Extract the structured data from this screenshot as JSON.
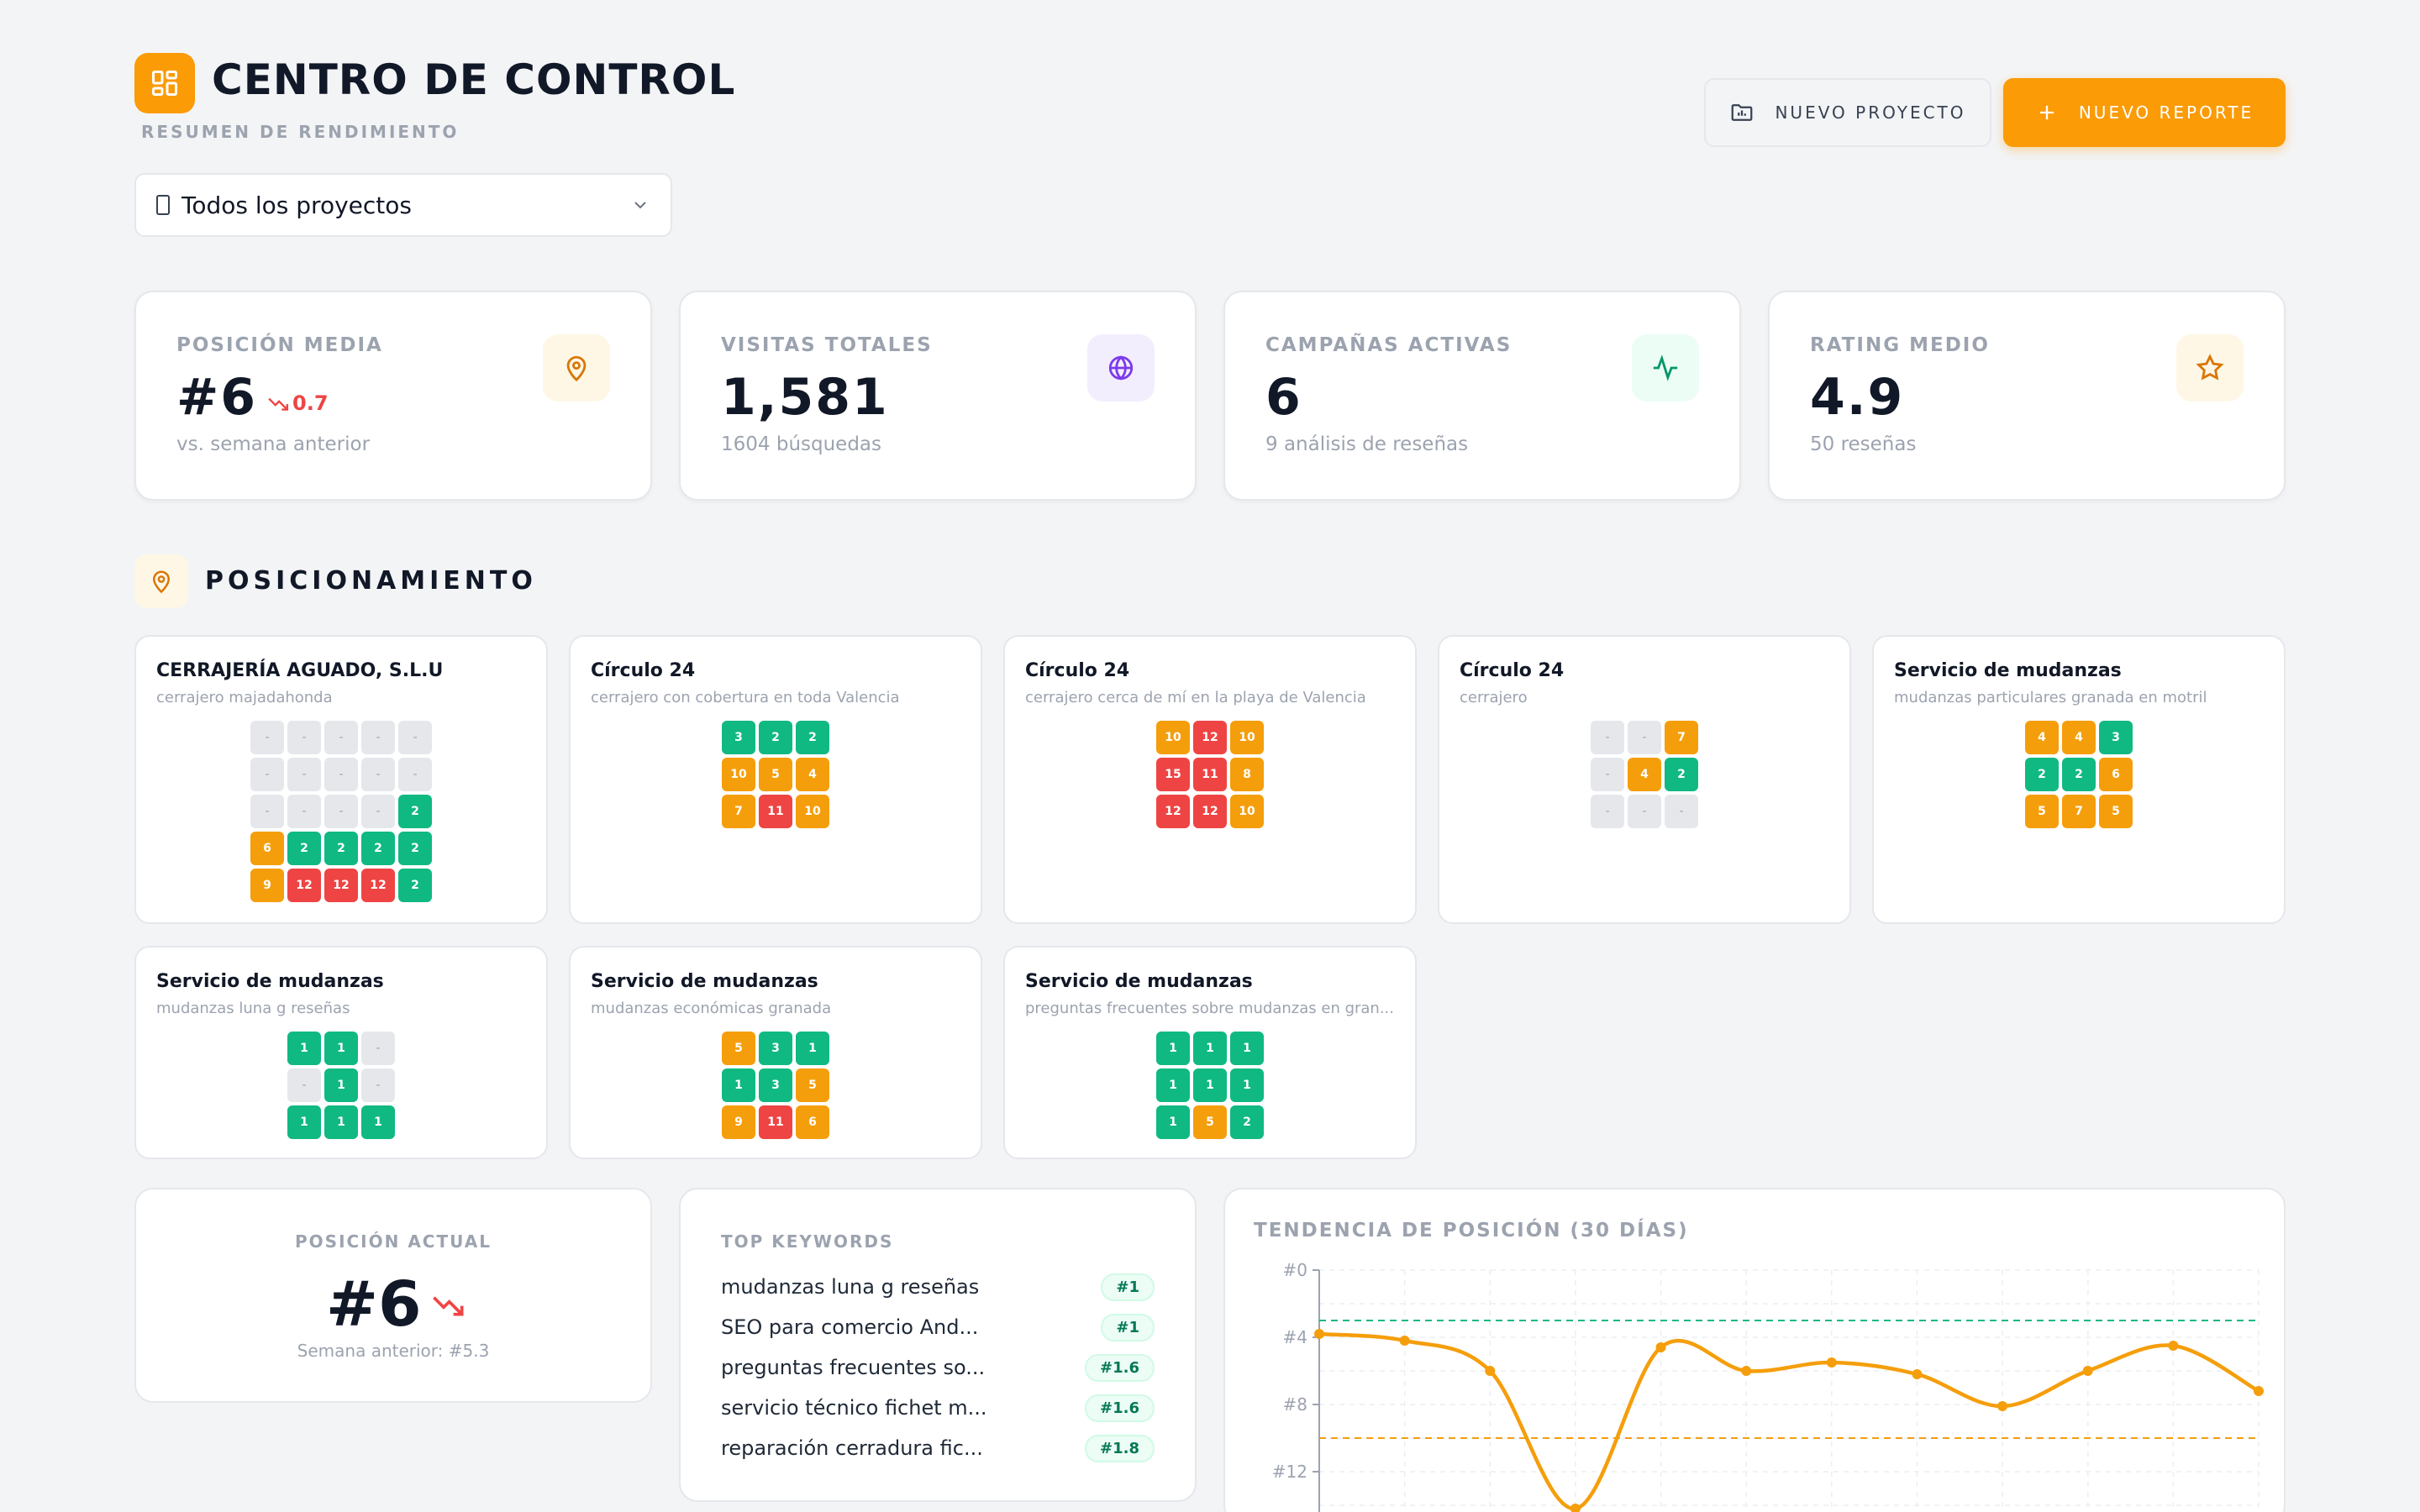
{
  "header": {
    "title": "CENTRO DE CONTROL",
    "subtitle": "RESUMEN DE RENDIMIENTO",
    "new_project_label": "NUEVO PROYECTO",
    "new_report_label": "NUEVO REPORTE",
    "accent_color": "#fb9b06"
  },
  "project_filter": {
    "selected": "Todos los proyectos"
  },
  "kpis": [
    {
      "label": "POSICIÓN MEDIA",
      "value": "#6",
      "delta": "0.7",
      "sub": "vs. semana anterior",
      "icon": "map-pin-icon"
    },
    {
      "label": "VISITAS TOTALES",
      "value": "1,581",
      "sub": "1604 búsquedas",
      "icon": "globe-icon"
    },
    {
      "label": "CAMPAÑAS ACTIVAS",
      "value": "6",
      "sub": "9 análisis de reseñas",
      "icon": "activity-icon"
    },
    {
      "label": "RATING MEDIO",
      "value": "4.9",
      "sub": "50 reseñas",
      "icon": "star-icon"
    }
  ],
  "section": {
    "title": "POSICIONAMIENTO",
    "icon": "map-pin-icon"
  },
  "grids": [
    {
      "name": "CERRAJERÍA AGUADO, S.L.U",
      "keyword": "cerrajero majadahonda",
      "rows": [
        [
          "-",
          "-",
          "-",
          "-",
          "-"
        ],
        [
          "-",
          "-",
          "-",
          "-",
          "-"
        ],
        [
          "-",
          "-",
          "-",
          "-",
          "2"
        ],
        [
          "6",
          "2",
          "2",
          "2",
          "2"
        ],
        [
          "9",
          "12",
          "12",
          "12",
          "2"
        ]
      ]
    },
    {
      "name": "Círculo 24",
      "keyword": "cerrajero con cobertura en toda Valencia",
      "rows": [
        [
          "3",
          "2",
          "2"
        ],
        [
          "10",
          "5",
          "4"
        ],
        [
          "7",
          "11",
          "10"
        ]
      ]
    },
    {
      "name": "Círculo 24",
      "keyword": "cerrajero cerca de mí en la playa de Valencia",
      "rows": [
        [
          "10",
          "12",
          "10"
        ],
        [
          "15",
          "11",
          "8"
        ],
        [
          "12",
          "12",
          "10"
        ]
      ]
    },
    {
      "name": "Círculo 24",
      "keyword": "cerrajero",
      "rows": [
        [
          "-",
          "-",
          "7"
        ],
        [
          "-",
          "4",
          "2"
        ],
        [
          "-",
          "-",
          "-"
        ]
      ]
    },
    {
      "name": "Servicio de mudanzas",
      "keyword": "mudanzas particulares granada en motril",
      "rows": [
        [
          "4",
          "4",
          "3"
        ],
        [
          "2",
          "2",
          "6"
        ],
        [
          "5",
          "7",
          "5"
        ]
      ]
    },
    {
      "name": "Servicio de mudanzas",
      "keyword": "mudanzas luna g reseñas",
      "rows": [
        [
          "1",
          "1",
          "-"
        ],
        [
          "-",
          "1",
          "-"
        ],
        [
          "1",
          "1",
          "1"
        ]
      ]
    },
    {
      "name": "Servicio de mudanzas",
      "keyword": "mudanzas económicas granada",
      "rows": [
        [
          "5",
          "3",
          "1"
        ],
        [
          "1",
          "3",
          "5"
        ],
        [
          "9",
          "11",
          "6"
        ]
      ]
    },
    {
      "name": "Servicio de mudanzas",
      "keyword": "preguntas frecuentes sobre mudanzas en gran...",
      "rows": [
        [
          "1",
          "1",
          "1"
        ],
        [
          "1",
          "1",
          "1"
        ],
        [
          "1",
          "5",
          "2"
        ]
      ]
    }
  ],
  "current_position": {
    "label": "POSICIÓN ACTUAL",
    "value": "#6",
    "previous": "Semana anterior: #5.3"
  },
  "top_keywords": {
    "label": "TOP KEYWORDS",
    "items": [
      {
        "text": "mudanzas luna g reseñas",
        "rank": "#1"
      },
      {
        "text": "SEO para comercio And...",
        "rank": "#1"
      },
      {
        "text": "preguntas frecuentes so...",
        "rank": "#1.6"
      },
      {
        "text": "servicio técnico fichet m...",
        "rank": "#1.6"
      },
      {
        "text": "reparación cerradura fic...",
        "rank": "#1.8"
      }
    ]
  },
  "chart_data": {
    "type": "line",
    "title": "TENDENCIA DE POSICIÓN (30 DÍAS)",
    "yticks": [
      "#0",
      "#4",
      "#8",
      "#12"
    ],
    "ylim": [
      0,
      14
    ],
    "y_inverted": true,
    "x": [
      1,
      2,
      3,
      4,
      5,
      6,
      7,
      8,
      9,
      10,
      11,
      12
    ],
    "values": [
      3.8,
      4.2,
      6.0,
      14.2,
      4.6,
      6.0,
      5.5,
      6.2,
      8.1,
      6.0,
      4.5,
      7.2
    ],
    "reference_lines": [
      {
        "value": 3.0,
        "color": "#10b981"
      },
      {
        "value": 10.0,
        "color": "#f59e0b"
      }
    ],
    "line_color": "#f59e0b",
    "grid": true
  }
}
